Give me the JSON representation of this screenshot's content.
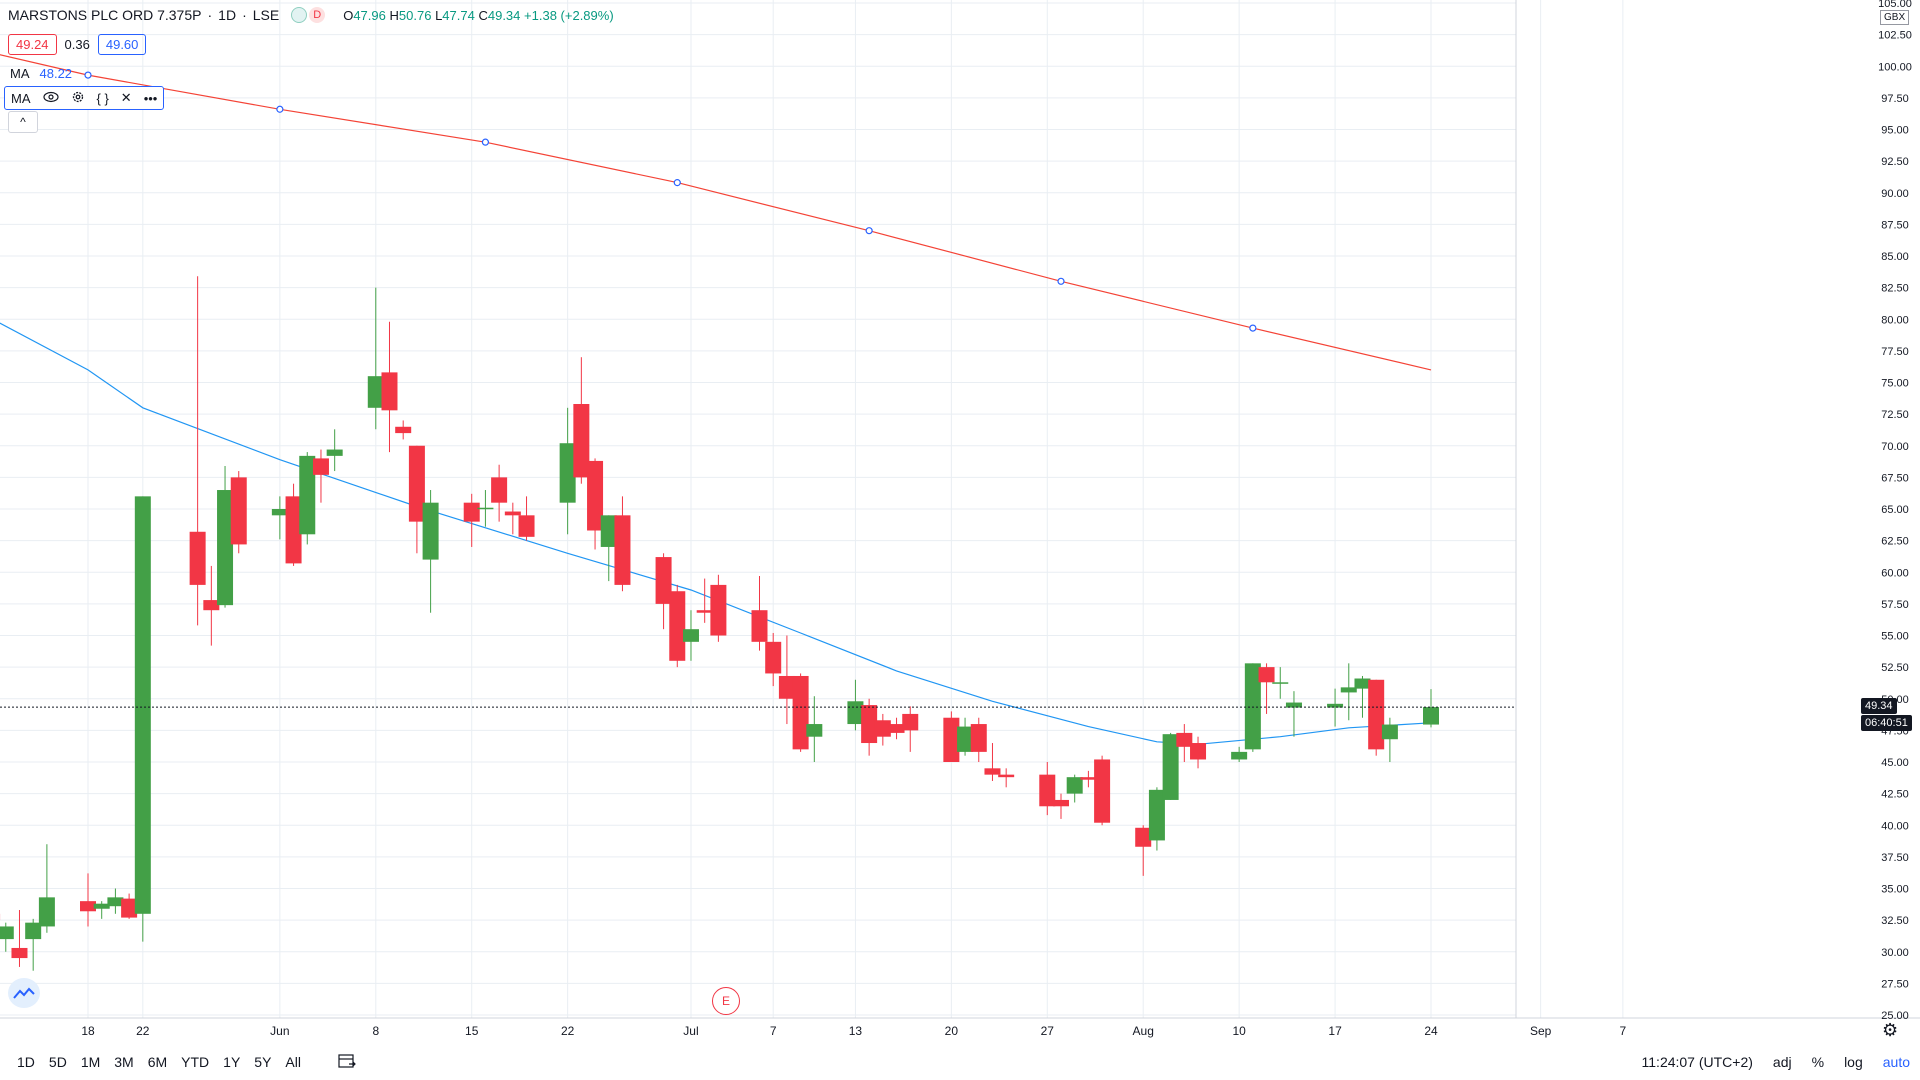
{
  "header": {
    "title": "MARSTONS PLC ORD 7.375P",
    "interval": "1D",
    "exchange": "LSE",
    "d_badge": "D",
    "open_label": "O",
    "open_value": "47.96",
    "high_label": "H",
    "high_value": "50.76",
    "low_label": "L",
    "low_value": "47.74",
    "close_label": "C",
    "close_value": "49.34",
    "change": "+1.38 (+2.89%)"
  },
  "bid_ask": {
    "bid": "49.24",
    "spread": "0.36",
    "ask": "49.60"
  },
  "ma_legend": {
    "label": "MA",
    "value": "48.22"
  },
  "ma_toolbar": {
    "label": "MA",
    "more": "•••"
  },
  "collapse_icon": "^",
  "currency_badge": "GBX",
  "price_labels": {
    "current": "49.34",
    "countdown": "06:40:51"
  },
  "earnings_marker": "E",
  "bottom_bar": {
    "ranges": [
      "1D",
      "5D",
      "1M",
      "3M",
      "6M",
      "YTD",
      "1Y",
      "5Y",
      "All"
    ],
    "time": "11:24:07 (UTC+2)",
    "adj": "adj",
    "percent": "%",
    "log": "log",
    "auto": "auto"
  },
  "colors": {
    "up": "#43a047",
    "down": "#f23645",
    "ma_fast": "#2196f3",
    "ma_slow": "#f44336",
    "grid": "#e9eef3"
  },
  "chart_data": {
    "type": "candlestick",
    "title": "MARSTONS PLC ORD 7.375P",
    "y_axis": {
      "range": [
        24.5,
        105.8
      ],
      "ticks": [
        25.0,
        27.5,
        30.0,
        32.5,
        35.0,
        37.5,
        40.0,
        42.5,
        45.0,
        47.5,
        50.0,
        52.5,
        55.0,
        57.5,
        60.0,
        62.5,
        65.0,
        67.5,
        70.0,
        72.5,
        75.0,
        77.5,
        80.0,
        82.5,
        85.0,
        87.5,
        90.0,
        92.5,
        95.0,
        97.5,
        100.0,
        102.5,
        105.0
      ]
    },
    "x_axis": {
      "ticks": [
        {
          "label": "18",
          "date": "2020-05-18"
        },
        {
          "label": "22",
          "date": "2020-05-22"
        },
        {
          "label": "Jun",
          "date": "2020-06-01"
        },
        {
          "label": "8",
          "date": "2020-06-08"
        },
        {
          "label": "15",
          "date": "2020-06-15"
        },
        {
          "label": "22",
          "date": "2020-06-22"
        },
        {
          "label": "Jul",
          "date": "2020-07-01"
        },
        {
          "label": "7",
          "date": "2020-07-07"
        },
        {
          "label": "13",
          "date": "2020-07-13"
        },
        {
          "label": "20",
          "date": "2020-07-20"
        },
        {
          "label": "27",
          "date": "2020-07-27"
        },
        {
          "label": "Aug",
          "date": "2020-08-03"
        },
        {
          "label": "10",
          "date": "2020-08-10"
        },
        {
          "label": "17",
          "date": "2020-08-17"
        },
        {
          "label": "24",
          "date": "2020-08-24"
        },
        {
          "label": "Sep",
          "date": "2020-09-01"
        },
        {
          "label": "7",
          "date": "2020-09-07"
        }
      ]
    },
    "candles": [
      {
        "date": "2020-05-11",
        "o": 33.0,
        "h": 33.2,
        "l": 32.0,
        "c": 32.5
      },
      {
        "date": "2020-05-12",
        "o": 31.0,
        "h": 32.3,
        "l": 30.0,
        "c": 32.0
      },
      {
        "date": "2020-05-13",
        "o": 30.3,
        "h": 33.3,
        "l": 28.8,
        "c": 29.5
      },
      {
        "date": "2020-05-14",
        "o": 31.0,
        "h": 32.6,
        "l": 28.5,
        "c": 32.3
      },
      {
        "date": "2020-05-15",
        "o": 32.0,
        "h": 38.5,
        "l": 31.5,
        "c": 34.3
      },
      {
        "date": "2020-05-18",
        "o": 34.0,
        "h": 36.2,
        "l": 32.0,
        "c": 33.2
      },
      {
        "date": "2020-05-19",
        "o": 33.4,
        "h": 34.0,
        "l": 32.6,
        "c": 33.8
      },
      {
        "date": "2020-05-20",
        "o": 33.6,
        "h": 35.0,
        "l": 33.0,
        "c": 34.3
      },
      {
        "date": "2020-05-21",
        "o": 34.2,
        "h": 34.6,
        "l": 32.6,
        "c": 32.7
      },
      {
        "date": "2020-05-22",
        "o": 33.0,
        "h": 66.0,
        "l": 30.8,
        "c": 66.0
      },
      {
        "date": "2020-05-26",
        "o": 63.2,
        "h": 83.4,
        "l": 55.8,
        "c": 59.0
      },
      {
        "date": "2020-05-27",
        "o": 57.8,
        "h": 60.5,
        "l": 54.2,
        "c": 57.0
      },
      {
        "date": "2020-05-28",
        "o": 57.4,
        "h": 68.4,
        "l": 57.2,
        "c": 66.5
      },
      {
        "date": "2020-05-29",
        "o": 67.5,
        "h": 68.0,
        "l": 61.5,
        "c": 62.2
      },
      {
        "date": "2020-06-01",
        "o": 64.5,
        "h": 66.0,
        "l": 62.6,
        "c": 65.0
      },
      {
        "date": "2020-06-02",
        "o": 66.0,
        "h": 67.0,
        "l": 60.5,
        "c": 60.7
      },
      {
        "date": "2020-06-03",
        "o": 63.0,
        "h": 69.5,
        "l": 62.2,
        "c": 69.2
      },
      {
        "date": "2020-06-04",
        "o": 69.0,
        "h": 69.7,
        "l": 65.5,
        "c": 67.7
      },
      {
        "date": "2020-06-05",
        "o": 69.2,
        "h": 71.3,
        "l": 68.0,
        "c": 69.7
      },
      {
        "date": "2020-06-08",
        "o": 73.0,
        "h": 82.5,
        "l": 71.3,
        "c": 75.5
      },
      {
        "date": "2020-06-09",
        "o": 75.8,
        "h": 79.8,
        "l": 69.5,
        "c": 72.8
      },
      {
        "date": "2020-06-10",
        "o": 71.5,
        "h": 72.0,
        "l": 70.5,
        "c": 71.0
      },
      {
        "date": "2020-06-11",
        "o": 70.0,
        "h": 70.0,
        "l": 61.5,
        "c": 64.0
      },
      {
        "date": "2020-06-12",
        "o": 61.0,
        "h": 66.5,
        "l": 56.8,
        "c": 65.5
      },
      {
        "date": "2020-06-15",
        "o": 65.5,
        "h": 66.2,
        "l": 62.0,
        "c": 64.0
      },
      {
        "date": "2020-06-16",
        "o": 65.0,
        "h": 66.5,
        "l": 63.6,
        "c": 65.1
      },
      {
        "date": "2020-06-17",
        "o": 67.5,
        "h": 68.5,
        "l": 64.0,
        "c": 65.5
      },
      {
        "date": "2020-06-18",
        "o": 64.8,
        "h": 65.5,
        "l": 63.0,
        "c": 64.5
      },
      {
        "date": "2020-06-19",
        "o": 64.5,
        "h": 66.0,
        "l": 62.5,
        "c": 62.8
      },
      {
        "date": "2020-06-22",
        "o": 65.5,
        "h": 73.0,
        "l": 63.0,
        "c": 70.2
      },
      {
        "date": "2020-06-23",
        "o": 73.3,
        "h": 77.0,
        "l": 67.0,
        "c": 67.5
      },
      {
        "date": "2020-06-24",
        "o": 68.8,
        "h": 69.0,
        "l": 61.8,
        "c": 63.3
      },
      {
        "date": "2020-06-25",
        "o": 62.0,
        "h": 64.5,
        "l": 59.3,
        "c": 64.5
      },
      {
        "date": "2020-06-26",
        "o": 64.5,
        "h": 66.0,
        "l": 58.5,
        "c": 59.0
      },
      {
        "date": "2020-06-29",
        "o": 61.2,
        "h": 61.5,
        "l": 55.5,
        "c": 57.5
      },
      {
        "date": "2020-06-30",
        "o": 58.5,
        "h": 59.0,
        "l": 52.5,
        "c": 53.0
      },
      {
        "date": "2020-07-01",
        "o": 54.5,
        "h": 57.0,
        "l": 53.0,
        "c": 55.5
      },
      {
        "date": "2020-07-02",
        "o": 57.0,
        "h": 59.5,
        "l": 56.0,
        "c": 56.8
      },
      {
        "date": "2020-07-03",
        "o": 59.0,
        "h": 59.8,
        "l": 54.5,
        "c": 55.0
      },
      {
        "date": "2020-07-06",
        "o": 57.0,
        "h": 59.7,
        "l": 53.8,
        "c": 54.5
      },
      {
        "date": "2020-07-07",
        "o": 54.5,
        "h": 55.2,
        "l": 51.0,
        "c": 52.0
      },
      {
        "date": "2020-07-08",
        "o": 51.8,
        "h": 55.0,
        "l": 48.0,
        "c": 50.0
      },
      {
        "date": "2020-07-09",
        "o": 51.8,
        "h": 52.0,
        "l": 45.8,
        "c": 46.0
      },
      {
        "date": "2020-07-10",
        "o": 47.0,
        "h": 50.2,
        "l": 45.0,
        "c": 48.0
      },
      {
        "date": "2020-07-13",
        "o": 48.0,
        "h": 51.5,
        "l": 47.5,
        "c": 49.8
      },
      {
        "date": "2020-07-14",
        "o": 49.5,
        "h": 50.0,
        "l": 45.5,
        "c": 46.5
      },
      {
        "date": "2020-07-15",
        "o": 48.3,
        "h": 48.8,
        "l": 46.3,
        "c": 47.0
      },
      {
        "date": "2020-07-16",
        "o": 48.0,
        "h": 48.5,
        "l": 46.8,
        "c": 47.3
      },
      {
        "date": "2020-07-17",
        "o": 48.8,
        "h": 49.4,
        "l": 45.8,
        "c": 47.5
      },
      {
        "date": "2020-07-20",
        "o": 48.5,
        "h": 49.0,
        "l": 45.0,
        "c": 45.0
      },
      {
        "date": "2020-07-21",
        "o": 45.8,
        "h": 48.5,
        "l": 45.5,
        "c": 47.8
      },
      {
        "date": "2020-07-22",
        "o": 48.0,
        "h": 48.5,
        "l": 45.0,
        "c": 45.8
      },
      {
        "date": "2020-07-23",
        "o": 44.5,
        "h": 46.5,
        "l": 43.5,
        "c": 44.0
      },
      {
        "date": "2020-07-24",
        "o": 44.0,
        "h": 44.5,
        "l": 43.0,
        "c": 43.8
      },
      {
        "date": "2020-07-27",
        "o": 44.0,
        "h": 45.0,
        "l": 40.8,
        "c": 41.5
      },
      {
        "date": "2020-07-28",
        "o": 42.0,
        "h": 42.5,
        "l": 40.5,
        "c": 41.5
      },
      {
        "date": "2020-07-29",
        "o": 42.5,
        "h": 44.0,
        "l": 41.8,
        "c": 43.8
      },
      {
        "date": "2020-07-30",
        "o": 43.8,
        "h": 44.3,
        "l": 43.0,
        "c": 43.6
      },
      {
        "date": "2020-07-31",
        "o": 45.2,
        "h": 45.5,
        "l": 40.0,
        "c": 40.2
      },
      {
        "date": "2020-08-03",
        "o": 39.8,
        "h": 40.0,
        "l": 36.0,
        "c": 38.3
      },
      {
        "date": "2020-08-04",
        "o": 38.8,
        "h": 43.0,
        "l": 38.0,
        "c": 42.8
      },
      {
        "date": "2020-08-05",
        "o": 42.0,
        "h": 47.3,
        "l": 42.0,
        "c": 47.2
      },
      {
        "date": "2020-08-06",
        "o": 47.3,
        "h": 48.0,
        "l": 45.0,
        "c": 46.2
      },
      {
        "date": "2020-08-07",
        "o": 46.5,
        "h": 47.0,
        "l": 44.5,
        "c": 45.2
      },
      {
        "date": "2020-08-10",
        "o": 45.2,
        "h": 46.2,
        "l": 45.0,
        "c": 45.8
      },
      {
        "date": "2020-08-11",
        "o": 46.0,
        "h": 52.8,
        "l": 45.8,
        "c": 52.8
      },
      {
        "date": "2020-08-12",
        "o": 52.5,
        "h": 52.8,
        "l": 48.8,
        "c": 51.3
      },
      {
        "date": "2020-08-13",
        "o": 51.2,
        "h": 52.5,
        "l": 50.0,
        "c": 51.3
      },
      {
        "date": "2020-08-14",
        "o": 49.3,
        "h": 50.6,
        "l": 47.0,
        "c": 49.7
      },
      {
        "date": "2020-08-17",
        "o": 49.3,
        "h": 50.8,
        "l": 47.8,
        "c": 49.6
      },
      {
        "date": "2020-08-18",
        "o": 50.5,
        "h": 52.8,
        "l": 48.3,
        "c": 50.9
      },
      {
        "date": "2020-08-19",
        "o": 50.8,
        "h": 51.8,
        "l": 48.5,
        "c": 51.6
      },
      {
        "date": "2020-08-20",
        "o": 51.5,
        "h": 51.5,
        "l": 45.5,
        "c": 46.0
      },
      {
        "date": "2020-08-21",
        "o": 46.8,
        "h": 48.5,
        "l": 45.0,
        "c": 47.96
      },
      {
        "date": "2020-08-24",
        "o": 47.96,
        "h": 50.76,
        "l": 47.74,
        "c": 49.34
      }
    ],
    "series": [
      {
        "type": "line",
        "color": "#f44336",
        "points": [
          {
            "date": "2020-05-10",
            "value": 101.3
          },
          {
            "date": "2020-05-18",
            "value": 99.3
          },
          {
            "date": "2020-06-01",
            "value": 96.6
          },
          {
            "date": "2020-06-16",
            "value": 94.0
          },
          {
            "date": "2020-06-30",
            "value": 90.8
          },
          {
            "date": "2020-07-14",
            "value": 87.0
          },
          {
            "date": "2020-07-28",
            "value": 83.0
          },
          {
            "date": "2020-08-11",
            "value": 79.3
          },
          {
            "date": "2020-08-24",
            "value": 76.0
          }
        ]
      },
      {
        "type": "line",
        "color": "#2196f3",
        "points": [
          {
            "date": "2020-05-10",
            "value": 80.6
          },
          {
            "date": "2020-05-18",
            "value": 76.0
          },
          {
            "date": "2020-05-22",
            "value": 73.0
          },
          {
            "date": "2020-06-01",
            "value": 68.9
          },
          {
            "date": "2020-06-11",
            "value": 65.2
          },
          {
            "date": "2020-06-22",
            "value": 61.5
          },
          {
            "date": "2020-07-01",
            "value": 58.6
          },
          {
            "date": "2020-07-09",
            "value": 55.2
          },
          {
            "date": "2020-07-16",
            "value": 52.2
          },
          {
            "date": "2020-07-23",
            "value": 49.8
          },
          {
            "date": "2020-07-30",
            "value": 47.8
          },
          {
            "date": "2020-08-04",
            "value": 46.6
          },
          {
            "date": "2020-08-07",
            "value": 46.4
          },
          {
            "date": "2020-08-13",
            "value": 47.0
          },
          {
            "date": "2020-08-18",
            "value": 47.7
          },
          {
            "date": "2020-08-24",
            "value": 48.1
          }
        ]
      }
    ],
    "current_price": 49.34,
    "grid": true
  }
}
